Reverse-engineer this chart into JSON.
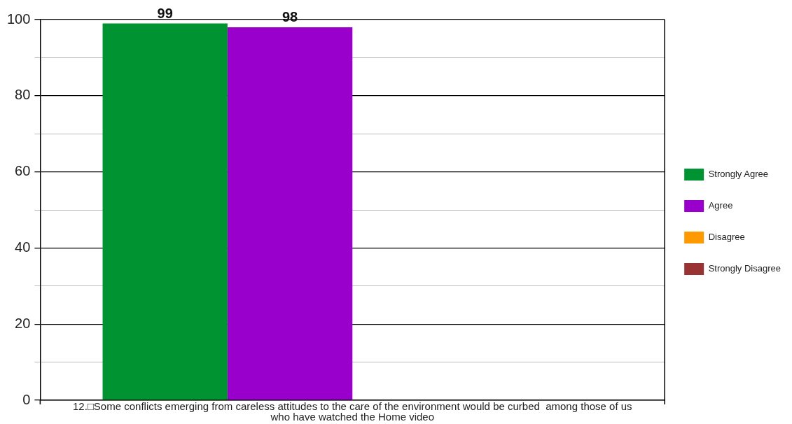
{
  "chart_data": {
    "type": "bar",
    "categories": [
      "12.□Some conflicts emerging from careless attitudes to the care of the environment would be curbed  among those of us who have watched the Home video"
    ],
    "series": [
      {
        "name": "Strongly Agree",
        "color": "#009331",
        "values": [
          99
        ]
      },
      {
        "name": "Agree",
        "color": "#9900cc",
        "values": [
          98
        ]
      },
      {
        "name": "Disagree",
        "color": "#ff9900",
        "values": [
          null
        ]
      },
      {
        "name": "Strongly Disagree",
        "color": "#993333",
        "values": [
          null
        ]
      }
    ],
    "ylim": [
      0,
      100
    ],
    "yticks": [
      0,
      {
        "value": 10,
        "label": null
      },
      20,
      {
        "value": 30,
        "label": null
      },
      40,
      {
        "value": 50,
        "label": null
      },
      60,
      {
        "value": 70,
        "label": null
      },
      80,
      {
        "value": 90,
        "label": null
      },
      100
    ],
    "grid": "y",
    "legend": "right",
    "data_labels": true
  }
}
